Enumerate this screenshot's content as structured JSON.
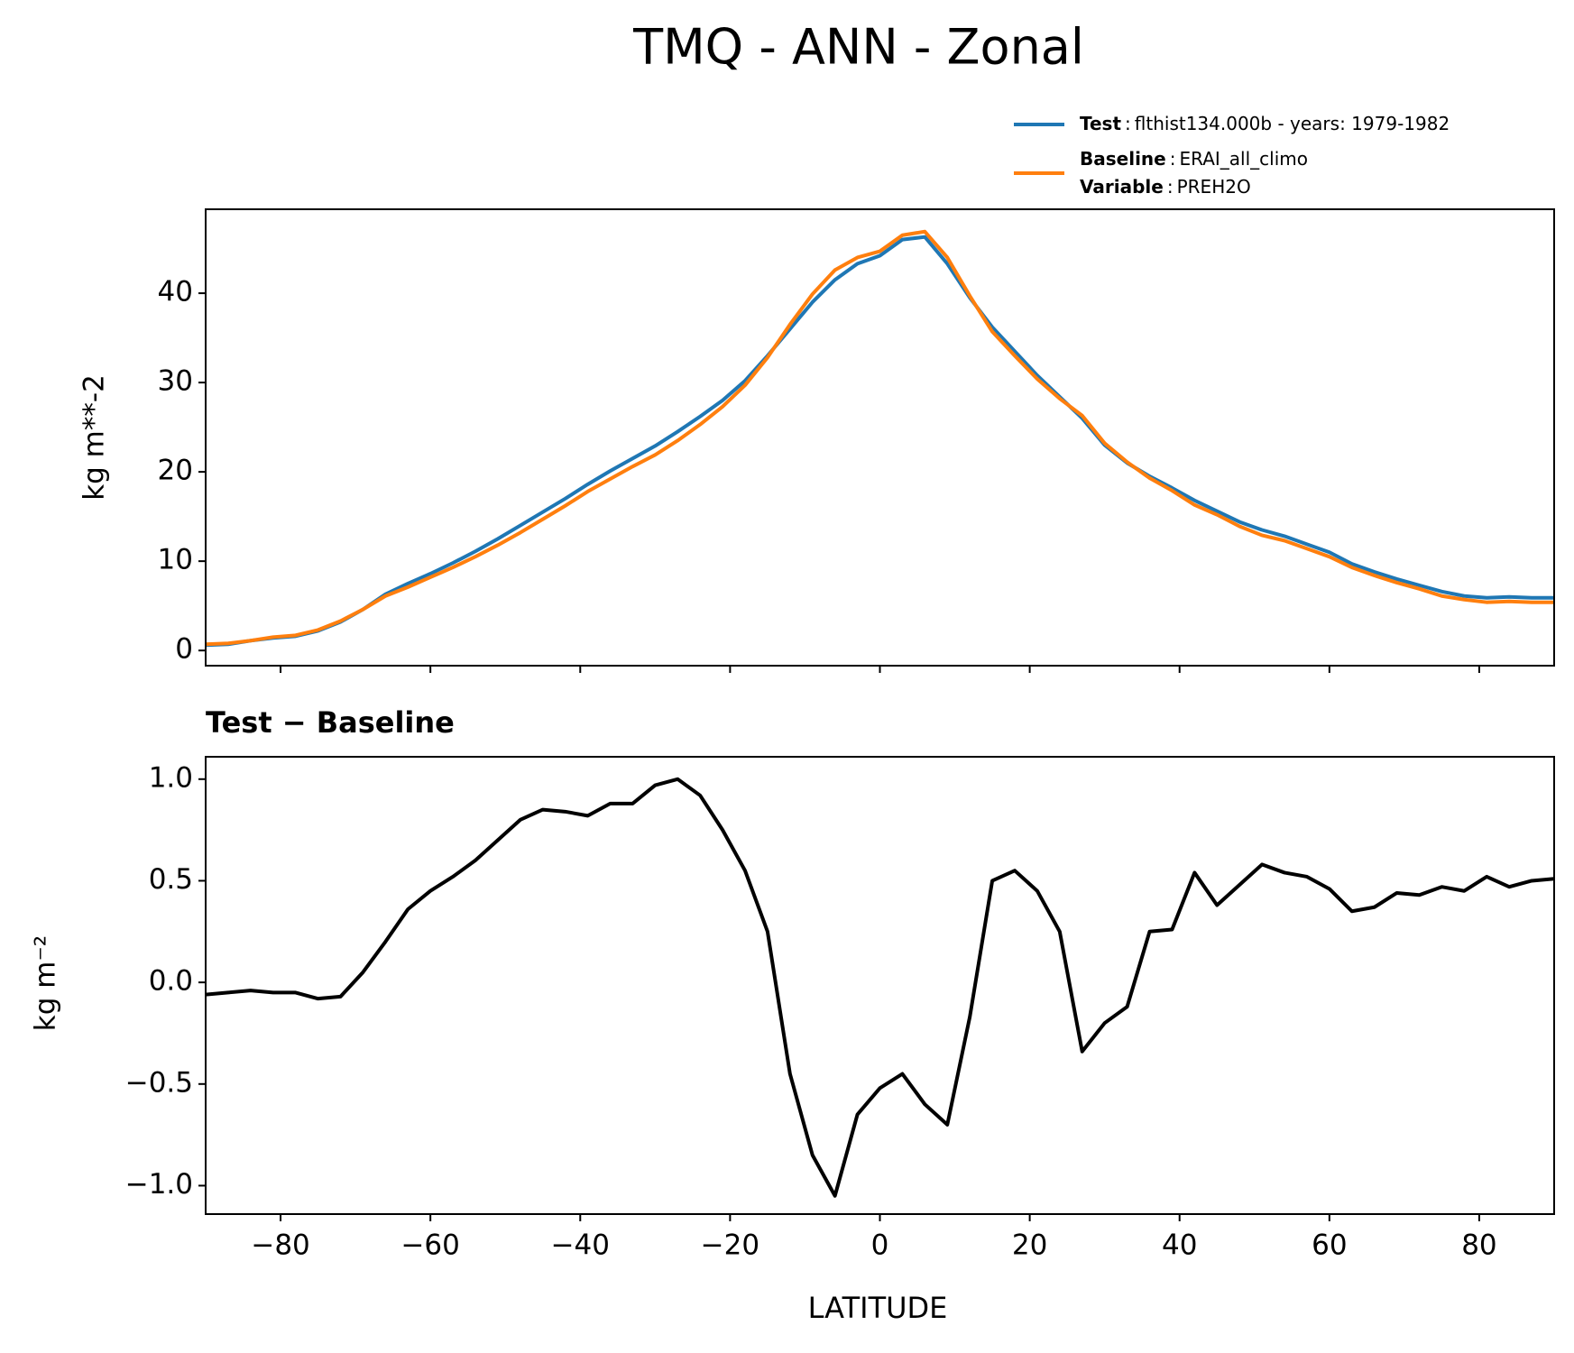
{
  "chart_data": [
    {
      "type": "line",
      "title": "TMQ - ANN - Zonal",
      "ylabel": "kg m**-2",
      "legend_separator": ":",
      "x": [
        -90,
        -87,
        -84,
        -81,
        -78,
        -75,
        -72,
        -69,
        -66,
        -63,
        -60,
        -57,
        -54,
        -51,
        -48,
        -45,
        -42,
        -39,
        -36,
        -33,
        -30,
        -27,
        -24,
        -21,
        -18,
        -15,
        -12,
        -9,
        -6,
        -3,
        0,
        3,
        6,
        9,
        12,
        15,
        18,
        21,
        24,
        27,
        30,
        33,
        36,
        39,
        42,
        45,
        48,
        51,
        54,
        57,
        60,
        63,
        66,
        69,
        72,
        75,
        78,
        81,
        84,
        87,
        90
      ],
      "series": [
        {
          "name": "Test",
          "label": "flthist134.000b - years: 1979-1982",
          "color": "#1f77b4",
          "values": [
            0.6,
            0.7,
            1.1,
            1.4,
            1.6,
            2.2,
            3.2,
            4.6,
            6.3,
            7.5,
            8.6,
            9.8,
            11.1,
            12.5,
            14.0,
            15.5,
            17.0,
            18.6,
            20.1,
            21.5,
            22.9,
            24.5,
            26.2,
            28.0,
            30.2,
            33.0,
            36.0,
            39.0,
            41.5,
            43.3,
            44.2,
            46.0,
            46.3,
            43.3,
            39.5,
            36.2,
            33.5,
            30.8,
            28.4,
            26.0,
            23.0,
            21.0,
            19.5,
            18.2,
            16.8,
            15.6,
            14.4,
            13.5,
            12.8,
            11.9,
            11.0,
            9.7,
            8.8,
            8.0,
            7.3,
            6.6,
            6.1,
            5.9,
            6.0,
            5.9,
            5.9
          ]
        },
        {
          "name": "Baseline",
          "label": "ERAI_all_climo",
          "variable": {
            "name": "Variable",
            "label": "PREH2O"
          },
          "color": "#ff7f0e",
          "values": [
            0.7,
            0.8,
            1.1,
            1.5,
            1.7,
            2.3,
            3.3,
            4.6,
            6.1,
            7.1,
            8.2,
            9.3,
            10.5,
            11.8,
            13.2,
            14.7,
            16.2,
            17.8,
            19.2,
            20.6,
            21.9,
            23.5,
            25.3,
            27.3,
            29.7,
            32.8,
            36.5,
            39.9,
            42.6,
            44.0,
            44.7,
            46.5,
            46.9,
            44.0,
            39.7,
            35.7,
            33.0,
            30.4,
            28.2,
            26.3,
            23.2,
            21.1,
            19.3,
            17.9,
            16.3,
            15.2,
            13.9,
            12.9,
            12.3,
            11.4,
            10.5,
            9.3,
            8.4,
            7.6,
            6.9,
            6.1,
            5.7,
            5.4,
            5.5,
            5.4,
            5.4
          ]
        }
      ],
      "xlim": [
        -90,
        90
      ],
      "xticks": [
        -80,
        -60,
        -40,
        -20,
        0,
        20,
        40,
        60,
        80
      ],
      "ylim": [
        -1.7,
        49.4
      ],
      "yticks": [
        0,
        10,
        20,
        30,
        40
      ]
    },
    {
      "type": "line",
      "title": "Test − Baseline",
      "xlabel": "LATITUDE",
      "ylabel": "kg m⁻²",
      "x": [
        -90,
        -87,
        -84,
        -81,
        -78,
        -75,
        -72,
        -69,
        -66,
        -63,
        -60,
        -57,
        -54,
        -51,
        -48,
        -45,
        -42,
        -39,
        -36,
        -33,
        -30,
        -27,
        -24,
        -21,
        -18,
        -15,
        -12,
        -9,
        -6,
        -3,
        0,
        3,
        6,
        9,
        12,
        15,
        18,
        21,
        24,
        27,
        30,
        33,
        36,
        39,
        42,
        45,
        48,
        51,
        54,
        57,
        60,
        63,
        66,
        69,
        72,
        75,
        78,
        81,
        84,
        87,
        90
      ],
      "series": [
        {
          "color": "#000000",
          "values": [
            -0.06,
            -0.05,
            -0.04,
            -0.05,
            -0.05,
            -0.08,
            -0.07,
            0.05,
            0.2,
            0.36,
            0.45,
            0.52,
            0.6,
            0.7,
            0.8,
            0.85,
            0.84,
            0.82,
            0.88,
            0.88,
            0.97,
            1.0,
            0.92,
            0.75,
            0.55,
            0.25,
            -0.45,
            -0.85,
            -1.05,
            -0.65,
            -0.52,
            -0.45,
            -0.6,
            -0.7,
            -0.17,
            0.5,
            0.55,
            0.45,
            0.25,
            -0.34,
            -0.2,
            -0.12,
            0.25,
            0.26,
            0.54,
            0.38,
            0.48,
            0.58,
            0.54,
            0.52,
            0.46,
            0.35,
            0.37,
            0.44,
            0.43,
            0.47,
            0.45,
            0.52,
            0.47,
            0.5,
            0.51
          ]
        }
      ],
      "xlim": [
        -90,
        90
      ],
      "xticks": [
        {
          "value": -80,
          "label": "−80"
        },
        {
          "value": -60,
          "label": "−60"
        },
        {
          "value": -40,
          "label": "−40"
        },
        {
          "value": -20,
          "label": "−20"
        },
        0,
        20,
        40,
        60,
        80
      ],
      "ylim": [
        -1.14,
        1.11
      ],
      "yticks": [
        {
          "value": -1.0,
          "label": "−1.0"
        },
        {
          "value": -0.5,
          "label": "−0.5"
        },
        {
          "value": 0.0,
          "label": "0.0"
        },
        {
          "value": 0.5,
          "label": "0.5"
        },
        {
          "value": 1.0,
          "label": "1.0"
        }
      ]
    }
  ]
}
